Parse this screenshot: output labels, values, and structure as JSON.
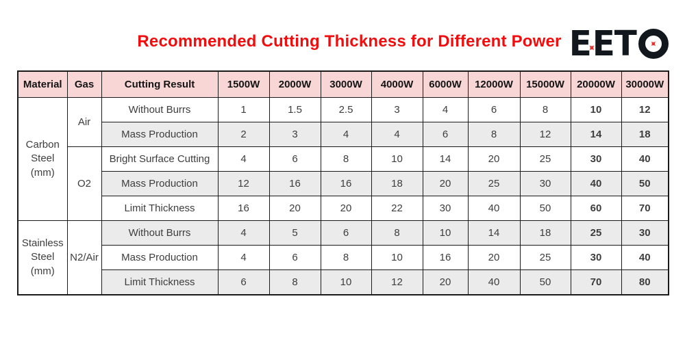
{
  "title": {
    "text": "Recommended Cutting Thickness for Different Power"
  },
  "logo": {
    "text": "EETO",
    "e1": "E",
    "e2": "E",
    "t": "T",
    "star_glyph": "✦"
  },
  "colors": {
    "title_red": "#f10d0d",
    "header_bg": "#f8d6d6",
    "row_alt_bg": "#ebebeb",
    "border": "#1a1a1a",
    "text_dark": "#3d3d3d",
    "text_black": "#141414",
    "limit_red_carbon": "#f22c1d",
    "limit_red_stainless": "#f5654a",
    "logo_black": "#12161d",
    "logo_red": "#e8322e"
  },
  "table": {
    "headers": [
      "Material",
      "Gas",
      "Cutting Result",
      "1500W",
      "2000W",
      "3000W",
      "4000W",
      "6000W",
      "12000W",
      "15000W",
      "20000W",
      "30000W"
    ],
    "material_groups": [
      {
        "label": "Carbon Steel\n(mm)",
        "rows": 5
      },
      {
        "label": "Stainless Steel\n(mm)",
        "rows": 3
      }
    ],
    "gas_groups": [
      {
        "label": "Air",
        "rows": 2
      },
      {
        "label": "O2",
        "rows": 3
      },
      {
        "label": "N2/Air",
        "rows": 3
      }
    ],
    "rows": [
      {
        "cutting_result": "Without Burrs",
        "values": [
          "1",
          "1.5",
          "2.5",
          "3",
          "4",
          "6",
          "8",
          "10",
          "12"
        ],
        "value_color": "dark"
      },
      {
        "cutting_result": "Mass Production",
        "values": [
          "2",
          "3",
          "4",
          "4",
          "6",
          "8",
          "12",
          "14",
          "18"
        ],
        "value_color": "dark"
      },
      {
        "cutting_result": "Bright Surface Cutting",
        "values": [
          "4",
          "6",
          "8",
          "10",
          "14",
          "20",
          "25",
          "30",
          "40"
        ],
        "value_color": "dark"
      },
      {
        "cutting_result": "Mass Production",
        "values": [
          "12",
          "16",
          "16",
          "18",
          "20",
          "25",
          "30",
          "40",
          "50"
        ],
        "value_color": "dark"
      },
      {
        "cutting_result": "Limit Thickness",
        "values": [
          "16",
          "20",
          "20",
          "22",
          "30",
          "40",
          "50",
          "60",
          "70"
        ],
        "value_color": "red"
      },
      {
        "cutting_result": "Without Burrs",
        "values": [
          "4",
          "5",
          "6",
          "8",
          "10",
          "14",
          "18",
          "25",
          "30"
        ],
        "value_color": "dark"
      },
      {
        "cutting_result": "Mass Production",
        "values": [
          "4",
          "6",
          "8",
          "10",
          "16",
          "20",
          "25",
          "30",
          "40"
        ],
        "value_color": "dark"
      },
      {
        "cutting_result": "Limit Thickness",
        "values": [
          "6",
          "8",
          "10",
          "12",
          "20",
          "40",
          "50",
          "70",
          "80"
        ],
        "value_color": "red2"
      }
    ]
  }
}
